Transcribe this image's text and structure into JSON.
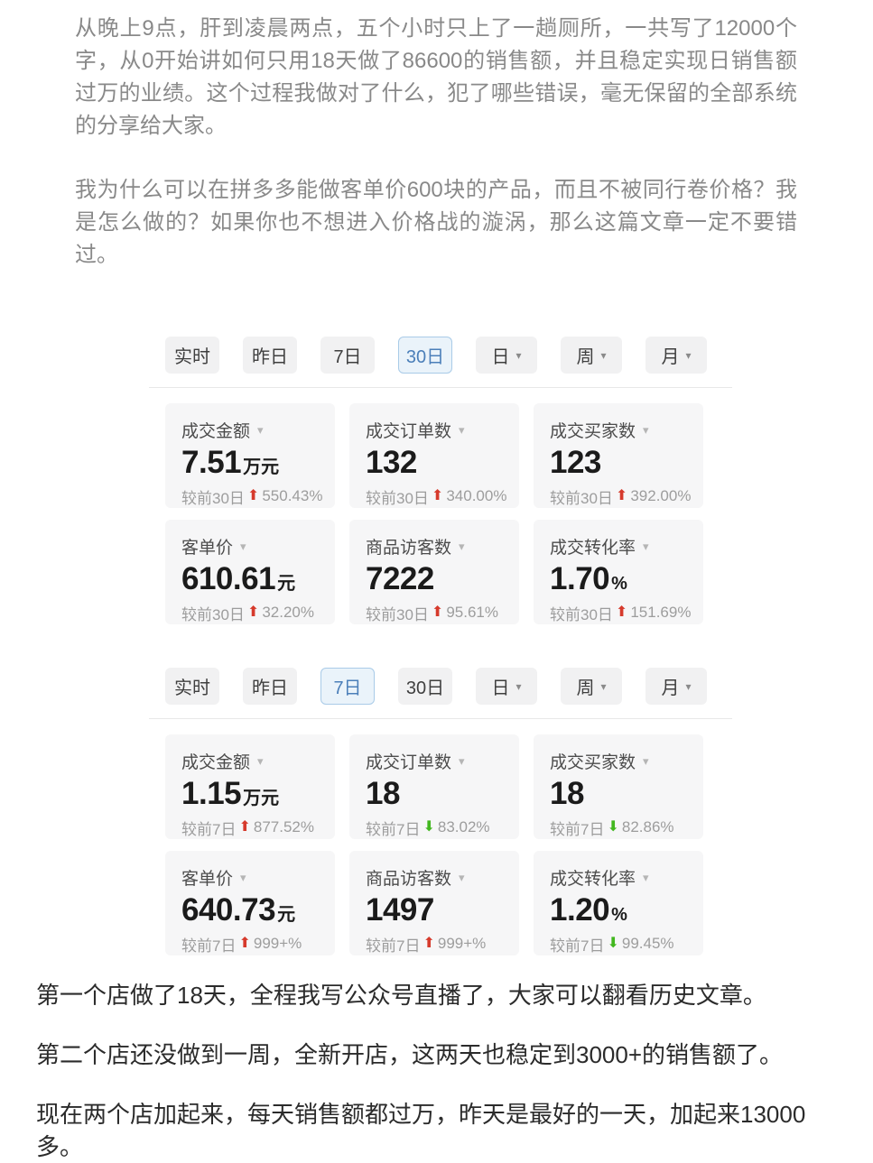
{
  "intro_paragraphs": [
    "从晚上9点，肝到凌晨两点，五个小时只上了一趟厕所，一共写了12000个字，从0开始讲如何只用18天做了86600的销售额，并且稳定实现日销售额过万的业绩。这个过程我做对了什么，犯了哪些错误，毫无保留的全部系统的分享给大家。",
    "我为什么可以在拼多多能做客单价600块的产品，而且不被同行卷价格？我是怎么做的？如果你也不想进入价格战的漩涡，那么这篇文章一定不要错过。"
  ],
  "closing_paragraphs": [
    "第一个店做了18天，全程我写公众号直播了，大家可以翻看历史文章。",
    "第二个店还没做到一周，全新开店，这两天也稳定到3000+的销售额了。",
    "现在两个店加起来，每天销售额都过万，昨天是最好的一天，加起来13000多。"
  ],
  "icons": {
    "chevron_down": "▾",
    "up_arrow": "⬆",
    "down_arrow": "⬇"
  },
  "colors": {
    "up": "#d63a2c",
    "down": "#42b71f",
    "selected_tab_text": "#4b7fb9",
    "selected_tab_bg": "#eaf3fa",
    "selected_tab_border": "#a9cbe8",
    "card_bg": "#f6f6f7"
  },
  "dashboards": [
    {
      "selected_range": "30日",
      "tabs": [
        {
          "label": "实时"
        },
        {
          "label": "昨日"
        },
        {
          "label": "7日"
        },
        {
          "label": "30日"
        },
        {
          "label": "日"
        },
        {
          "label": "周"
        },
        {
          "label": "月"
        }
      ],
      "cards": [
        {
          "label": "成交金额",
          "value": "7.51",
          "suffix": "万元",
          "compare": "较前30日",
          "trend": "up",
          "change": "550.43%"
        },
        {
          "label": "成交订单数",
          "value": "132",
          "suffix": "",
          "compare": "较前30日",
          "trend": "up",
          "change": "340.00%"
        },
        {
          "label": "成交买家数",
          "value": "123",
          "suffix": "",
          "compare": "较前30日",
          "trend": "up",
          "change": "392.00%"
        },
        {
          "label": "客单价",
          "value": "610.61",
          "suffix": "元",
          "compare": "较前30日",
          "trend": "up",
          "change": "32.20%"
        },
        {
          "label": "商品访客数",
          "value": "7222",
          "suffix": "",
          "compare": "较前30日",
          "trend": "up",
          "change": "95.61%"
        },
        {
          "label": "成交转化率",
          "value": "1.70",
          "suffix": "%",
          "compare": "较前30日",
          "trend": "up",
          "change": "151.69%"
        }
      ]
    },
    {
      "selected_range": "7日",
      "tabs": [
        {
          "label": "实时"
        },
        {
          "label": "昨日"
        },
        {
          "label": "7日"
        },
        {
          "label": "30日"
        },
        {
          "label": "日"
        },
        {
          "label": "周"
        },
        {
          "label": "月"
        }
      ],
      "cards": [
        {
          "label": "成交金额",
          "value": "1.15",
          "suffix": "万元",
          "compare": "较前7日",
          "trend": "up",
          "change": "877.52%"
        },
        {
          "label": "成交订单数",
          "value": "18",
          "suffix": "",
          "compare": "较前7日",
          "trend": "down",
          "change": "83.02%"
        },
        {
          "label": "成交买家数",
          "value": "18",
          "suffix": "",
          "compare": "较前7日",
          "trend": "down",
          "change": "82.86%"
        },
        {
          "label": "客单价",
          "value": "640.73",
          "suffix": "元",
          "compare": "较前7日",
          "trend": "up",
          "change": "999+%"
        },
        {
          "label": "商品访客数",
          "value": "1497",
          "suffix": "",
          "compare": "较前7日",
          "trend": "up",
          "change": "999+%"
        },
        {
          "label": "成交转化率",
          "value": "1.20",
          "suffix": "%",
          "compare": "较前7日",
          "trend": "down",
          "change": "99.45%"
        }
      ]
    }
  ]
}
